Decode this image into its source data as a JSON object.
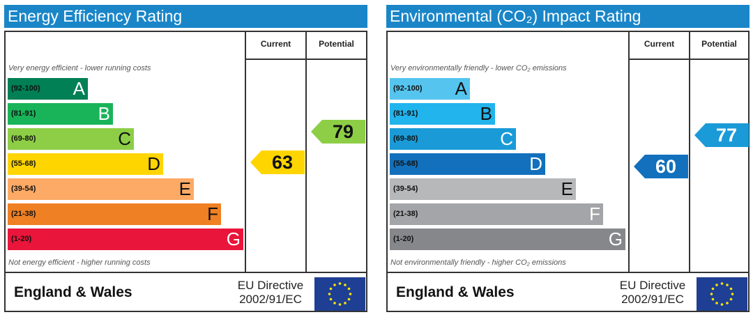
{
  "chart_data": [
    {
      "type": "bar",
      "title": "Energy Efficiency Rating",
      "columns": [
        "Current",
        "Potential"
      ],
      "top_note": "Very energy efficient - lower running costs",
      "bottom_note": "Not energy efficient - higher running costs",
      "bands": [
        {
          "letter": "A",
          "range": "(92-100)",
          "color": "#008054",
          "min": 92,
          "max": 100,
          "dark_letter": false
        },
        {
          "letter": "B",
          "range": "(81-91)",
          "color": "#19b459",
          "min": 81,
          "max": 91,
          "dark_letter": false
        },
        {
          "letter": "C",
          "range": "(69-80)",
          "color": "#8dce46",
          "min": 69,
          "max": 80,
          "dark_letter": true
        },
        {
          "letter": "D",
          "range": "(55-68)",
          "color": "#ffd500",
          "min": 55,
          "max": 68,
          "dark_letter": true
        },
        {
          "letter": "E",
          "range": "(39-54)",
          "color": "#fcaa65",
          "min": 39,
          "max": 54,
          "dark_letter": true
        },
        {
          "letter": "F",
          "range": "(21-38)",
          "color": "#ef8023",
          "min": 21,
          "max": 38,
          "dark_letter": true
        },
        {
          "letter": "G",
          "range": "(1-20)",
          "color": "#e9153b",
          "min": 1,
          "max": 20,
          "dark_letter": false
        }
      ],
      "current": {
        "value": 63,
        "band": "D",
        "color": "#ffd500",
        "light_text": false
      },
      "potential": {
        "value": 79,
        "band": "C",
        "color": "#8dce46",
        "light_text": false
      },
      "footer": {
        "region": "England & Wales",
        "directive_line1": "EU Directive",
        "directive_line2": "2002/91/EC"
      }
    },
    {
      "type": "bar",
      "title": "Environmental (CO₂) Impact Rating",
      "columns": [
        "Current",
        "Potential"
      ],
      "top_note": "Very environmentally friendly - lower CO₂ emissions",
      "bottom_note": "Not environmentally friendly - higher CO₂ emissions",
      "bands": [
        {
          "letter": "A",
          "range": "(92-100)",
          "color": "#55c5f0",
          "min": 92,
          "max": 100,
          "dark_letter": true
        },
        {
          "letter": "B",
          "range": "(81-91)",
          "color": "#22b4ec",
          "min": 81,
          "max": 91,
          "dark_letter": true
        },
        {
          "letter": "C",
          "range": "(69-80)",
          "color": "#1a9bd8",
          "min": 69,
          "max": 80,
          "dark_letter": false
        },
        {
          "letter": "D",
          "range": "(55-68)",
          "color": "#1270bc",
          "min": 55,
          "max": 68,
          "dark_letter": false
        },
        {
          "letter": "E",
          "range": "(39-54)",
          "color": "#b7b8ba",
          "min": 39,
          "max": 54,
          "dark_letter": true
        },
        {
          "letter": "F",
          "range": "(21-38)",
          "color": "#a3a5a8",
          "min": 21,
          "max": 38,
          "dark_letter": false
        },
        {
          "letter": "G",
          "range": "(1-20)",
          "color": "#86878a",
          "min": 1,
          "max": 20,
          "dark_letter": false
        }
      ],
      "current": {
        "value": 60,
        "band": "D",
        "color": "#1270bc",
        "light_text": true
      },
      "potential": {
        "value": 77,
        "band": "C",
        "color": "#1a9bd8",
        "light_text": true
      },
      "footer": {
        "region": "England & Wales",
        "directive_line1": "EU Directive",
        "directive_line2": "2002/91/EC"
      }
    }
  ]
}
